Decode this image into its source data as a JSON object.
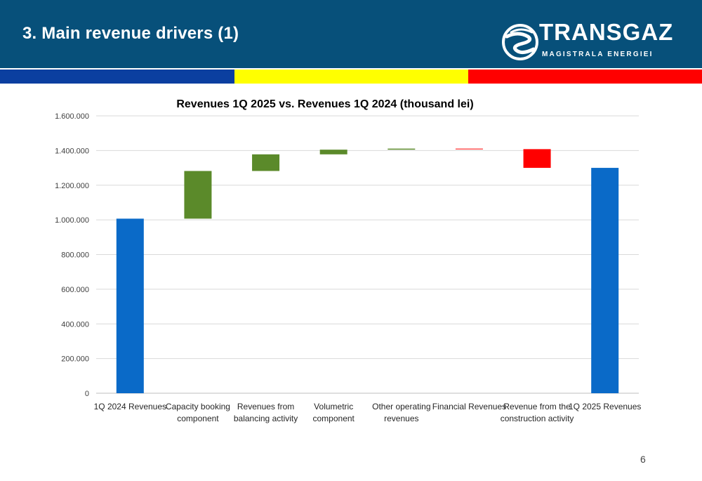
{
  "header": {
    "title": "3. Main revenue drivers (1)",
    "background": "#07507a",
    "logo": {
      "icon": "transgaz-swirl-icon",
      "name": "TRANSGAZ",
      "tagline": "MAGISTRALA ENERGIEI"
    }
  },
  "stripe_colors": [
    "#0b3fa0",
    "#ffff00",
    "#ff0000"
  ],
  "page_number": "6",
  "chart_data": {
    "type": "waterfall",
    "title": "Revenues 1Q 2025 vs. Revenues 1Q 2024 (thousand lei)",
    "xlabel": "",
    "ylabel": "",
    "ylim": [
      0,
      1600000
    ],
    "yticks": [
      0,
      200000,
      400000,
      600000,
      800000,
      1000000,
      1200000,
      1400000,
      1600000
    ],
    "ytick_labels": [
      "0",
      "200.000",
      "400.000",
      "600.000",
      "800.000",
      "1.000.000",
      "1.200.000",
      "1.400.000",
      "1.600.000"
    ],
    "grid": true,
    "legend": "none",
    "colors": {
      "total": "#0a6ac8",
      "increase": "#5b8a2a",
      "decrease": "#ff0000"
    },
    "categories": [
      [
        "1Q 2024 Revenues"
      ],
      [
        "Capacity booking",
        "component"
      ],
      [
        "Revenues from",
        "balancing activity"
      ],
      [
        "Volumetric",
        "component"
      ],
      [
        "Other operating",
        "revenues"
      ],
      [
        "Financial Revenues"
      ],
      [
        "Revenue from the",
        "construction activity"
      ],
      [
        "1Q 2025 Revenues"
      ]
    ],
    "bars": [
      {
        "kind": "total",
        "start": 0,
        "end": 1007000
      },
      {
        "kind": "increase",
        "start": 1007000,
        "end": 1282000
      },
      {
        "kind": "increase",
        "start": 1282000,
        "end": 1378000
      },
      {
        "kind": "increase",
        "start": 1378000,
        "end": 1405000
      },
      {
        "kind": "increase",
        "start": 1405000,
        "end": 1411000
      },
      {
        "kind": "decrease",
        "start": 1411000,
        "end": 1408000
      },
      {
        "kind": "decrease",
        "start": 1408000,
        "end": 1300000
      },
      {
        "kind": "total",
        "start": 0,
        "end": 1300000
      }
    ]
  }
}
